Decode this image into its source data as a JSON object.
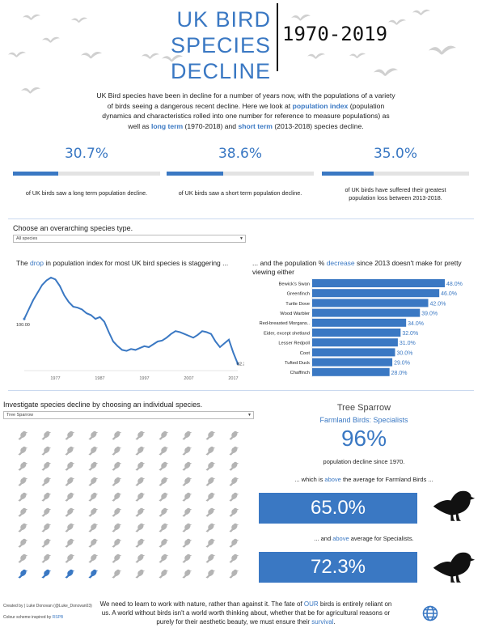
{
  "header": {
    "title_line1": "UK BIRD SPECIES",
    "title_line2": "DECLINE",
    "subtitle": "1970-2019"
  },
  "intro": {
    "t1": "UK Bird species have been in decline for a number of years now, with the populations of a variety of birds seeing a dangerous recent decline. Here we look at ",
    "k1": "population index",
    "t2": " (population dynamics and characteristics rolled into one number for reference to measure populations) as well as ",
    "k2": "long term",
    "t3": " (1970-2018) and ",
    "k3": "short term",
    "t4": " (2013-2018) species decline."
  },
  "kpis": [
    {
      "value": "30.7%",
      "fraction": 0.307,
      "desc": "of UK birds saw a long term population decline."
    },
    {
      "value": "38.6%",
      "fraction": 0.386,
      "desc": "of UK birds saw a short term population decline."
    },
    {
      "value": "35.0%",
      "fraction": 0.35,
      "desc": "of UK birds have suffered their greatest population loss between 2013-2018."
    }
  ],
  "species_type": {
    "label": "Choose an overarching species type.",
    "selected": "All species"
  },
  "line_chart": {
    "title_pre": "The ",
    "title_key": "drop",
    "title_post": " in population index for most UK bird species is staggering ...",
    "start_label": "100.00",
    "end_label": "52.34"
  },
  "bar_chart": {
    "title_pre": "... and the population % ",
    "title_key": "decrease",
    "title_post": " since 2013 doesn't make for pretty viewing either"
  },
  "chart_data": [
    {
      "type": "line",
      "title": "",
      "xlabel": "",
      "ylabel": "",
      "x_ticks": [
        "1977",
        "1987",
        "1997",
        "2007",
        "2017"
      ],
      "x": [
        1970,
        1971,
        1972,
        1973,
        1974,
        1975,
        1976,
        1977,
        1978,
        1979,
        1980,
        1981,
        1982,
        1983,
        1984,
        1985,
        1986,
        1987,
        1988,
        1989,
        1990,
        1991,
        1992,
        1993,
        1994,
        1995,
        1996,
        1997,
        1998,
        1999,
        2000,
        2001,
        2002,
        2003,
        2004,
        2005,
        2006,
        2007,
        2008,
        2009,
        2010,
        2011,
        2012,
        2013,
        2014,
        2015,
        2016,
        2017,
        2018
      ],
      "y": [
        100,
        110,
        120,
        128,
        136,
        141,
        144,
        142,
        135,
        125,
        118,
        113,
        112,
        110,
        106,
        104,
        100,
        102,
        97,
        86,
        76,
        71,
        67,
        66,
        68,
        67,
        69,
        71,
        70,
        73,
        76,
        77,
        80,
        84,
        87,
        86,
        84,
        82,
        80,
        83,
        87,
        86,
        84,
        76,
        70,
        74,
        78,
        64,
        52.34
      ],
      "ylim": [
        45,
        150
      ],
      "xlim": [
        1970,
        2018
      ]
    },
    {
      "type": "bar",
      "title": "",
      "categories": [
        "Bewick's Swan",
        "Greenfinch",
        "Turtle Dove",
        "Wood Warbler",
        "Red-breasted Morgans..",
        "Eider, except shetland",
        "Lesser Redpoll",
        "Coot",
        "Tufted Duck",
        "Chaffinch"
      ],
      "values": [
        48.0,
        46.0,
        42.0,
        39.0,
        34.0,
        32.0,
        31.0,
        30.0,
        29.0,
        28.0
      ],
      "value_labels": [
        "48.0%",
        "46.0%",
        "42.0%",
        "39.0%",
        "34.0%",
        "32.0%",
        "31.0%",
        "30.0%",
        "29.0%",
        "28.0%"
      ],
      "xlim": [
        0,
        48
      ],
      "color": "#3a78c3"
    }
  ],
  "individual": {
    "label": "Investigate species decline by choosing an individual species.",
    "selected": "Tree Sparrow",
    "icon_total": 100,
    "icon_highlighted": 4,
    "grey_color": "#b4b4b4",
    "blue_color": "#3a78c3"
  },
  "species_panel": {
    "name": "Tree Sparrow",
    "group": "Farmland Birds: Specialists",
    "pct": "96%",
    "pct_caption": "population decline since 1970.",
    "cmp1_pre": "... which is ",
    "cmp1_key": "above",
    "cmp1_post": " the average for Farmland Birds ...",
    "box1": "65.0%",
    "cmp2_pre": "... and ",
    "cmp2_key": "above",
    "cmp2_post": " average for Specialists.",
    "box2": "72.3%"
  },
  "footer": {
    "credit1": "Created by | Luke Donovan (@Luke_Donovan03)",
    "credit2": "Colour scheme inspired by ",
    "credit2_key": "RSPB",
    "t1": "We need to learn to work with nature, rather than against it. The fate of ",
    "k1": "OUR",
    "t2": " birds is entirely reliant on us. A world without birds isn't a world worth thinking about, whether that be for agricultural reasons or purely for their aesthetic beauty, we must ensure their ",
    "k2": "survival",
    "t3": "."
  },
  "colors": {
    "accent": "#3a78c3",
    "grey_bird": "#b4b4b4"
  },
  "icons": [
    "flying-bird-icon",
    "sparrow-icon",
    "blackbird-silhouette-icon",
    "globe-icon",
    "dropdown-arrow-icon"
  ]
}
